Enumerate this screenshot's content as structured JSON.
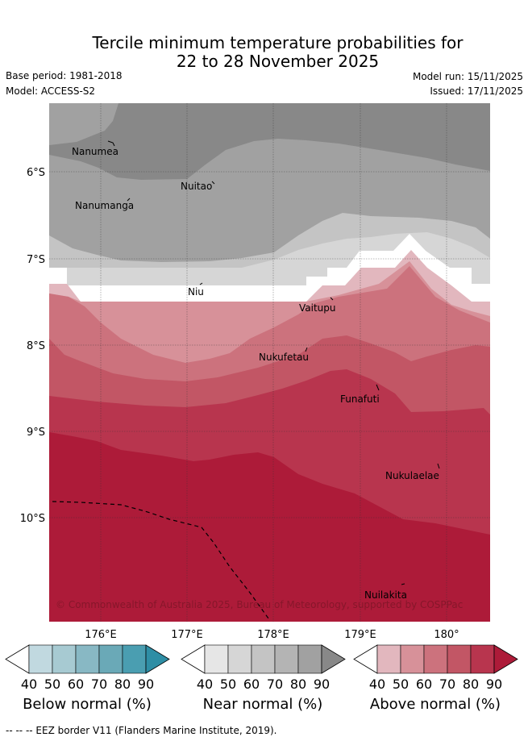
{
  "title": {
    "line1": "Tercile minimum temperature probabilities for",
    "line2": "22 to 28 November 2025"
  },
  "meta": {
    "base_period": "Base period: 1981-2018",
    "model": "Model: ACCESS-S2",
    "model_run": "Model run: 15/11/2025",
    "issued": "Issued: 17/11/2025"
  },
  "map": {
    "lat_labels": [
      "6°S",
      "7°S",
      "8°S",
      "9°S",
      "10°S"
    ],
    "lon_labels": [
      "176°E",
      "177°E",
      "178°E",
      "179°E",
      "180°"
    ],
    "places": [
      "Nanumea",
      "Nuitao",
      "Nanumanga",
      "Niu",
      "Vaitupu",
      "Nukufetau",
      "Funafuti",
      "Nukulaelae",
      "Nuilakita"
    ],
    "copyright": "© Commonwealth of Australia 2025, Bureau of Meteorology, supported by COSPPac"
  },
  "colorbars": [
    {
      "name": "below-normal",
      "title": "Below normal (%)",
      "ticks": [
        "40",
        "50",
        "60",
        "70",
        "80",
        "90"
      ],
      "colors": [
        "#ffffff",
        "#c1d9e0",
        "#a7cad2",
        "#88b8c4",
        "#6aa9b7",
        "#4a9eb1",
        "#2e8ea5"
      ]
    },
    {
      "name": "near-normal",
      "title": "Near normal (%)",
      "ticks": [
        "40",
        "50",
        "60",
        "70",
        "80",
        "90"
      ],
      "colors": [
        "#ffffff",
        "#e6e6e6",
        "#d6d6d6",
        "#c4c4c4",
        "#b4b4b4",
        "#a1a1a1",
        "#888888"
      ]
    },
    {
      "name": "above-normal",
      "title": "Above normal (%)",
      "ticks": [
        "40",
        "50",
        "60",
        "70",
        "80",
        "90"
      ],
      "colors": [
        "#ffffff",
        "#e2b7be",
        "#d79199",
        "#cc727d",
        "#c25665",
        "#b8354e",
        "#ad1b39"
      ]
    }
  ],
  "footer": "--  --  -- EEZ border V11 (Flanders Marine Institute, 2019)."
}
